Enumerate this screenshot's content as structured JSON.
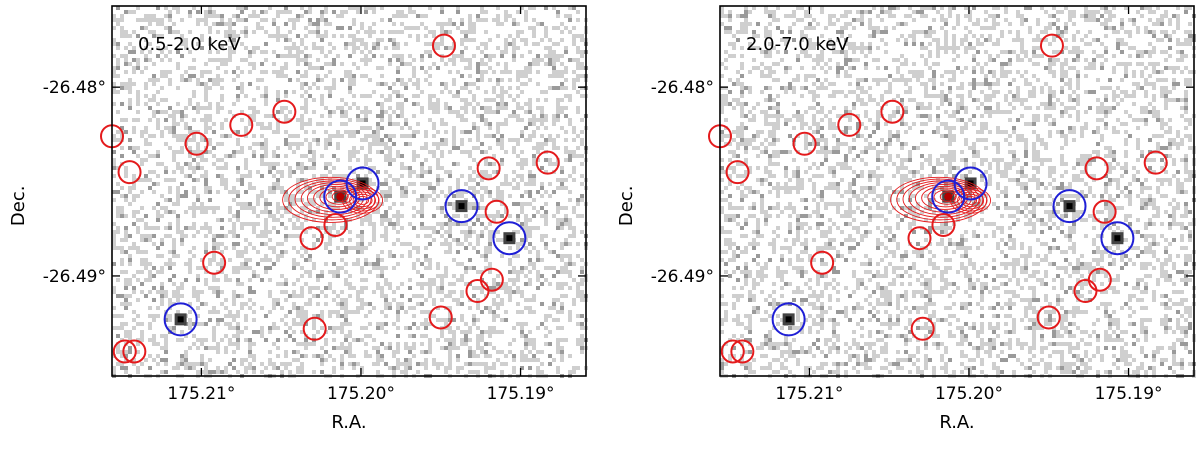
{
  "chart_data": [
    {
      "type": "scatter",
      "band_label": "0.5-2.0 keV",
      "xlabel": "R.A.",
      "ylabel": "Dec.",
      "x_ticks": [
        175.21,
        175.2,
        175.19
      ],
      "x_tick_labels": [
        "175.21°",
        "175.20°",
        "175.19°"
      ],
      "y_ticks": [
        -26.48,
        -26.49
      ],
      "y_tick_labels": [
        "-26.48°",
        "-26.49°"
      ],
      "xlim": [
        175.2156,
        175.1859
      ],
      "ylim": [
        -26.4953,
        -26.4757
      ],
      "red_sources": [
        [
          175.2156,
          -26.4826
        ],
        [
          175.2145,
          -26.4845
        ],
        [
          175.2103,
          -26.483
        ],
        [
          175.2092,
          -26.4893
        ],
        [
          175.2075,
          -26.482
        ],
        [
          175.2048,
          -26.4813
        ],
        [
          175.2031,
          -26.488
        ],
        [
          175.2016,
          -26.4873
        ],
        [
          175.2029,
          -26.4928
        ],
        [
          175.1948,
          -26.4778
        ],
        [
          175.192,
          -26.4843
        ],
        [
          175.1915,
          -26.4866
        ],
        [
          175.1883,
          -26.484
        ],
        [
          175.195,
          -26.4922
        ],
        [
          175.1927,
          -26.4908
        ],
        [
          175.1918,
          -26.4902
        ],
        [
          175.2148,
          -26.494
        ],
        [
          175.2142,
          -26.494
        ]
      ],
      "blue_sources": [
        [
          175.2013,
          -26.4858
        ],
        [
          175.1999,
          -26.4851
        ],
        [
          175.1937,
          -26.4863
        ],
        [
          175.1907,
          -26.488
        ],
        [
          175.2113,
          -26.4923
        ]
      ]
    },
    {
      "type": "scatter",
      "band_label": "2.0-7.0 keV",
      "xlabel": "R.A.",
      "ylabel": "Dec.",
      "x_ticks": [
        175.21,
        175.2,
        175.19
      ],
      "x_tick_labels": [
        "175.21°",
        "175.20°",
        "175.19°"
      ],
      "y_ticks": [
        -26.48,
        -26.49
      ],
      "y_tick_labels": [
        "-26.48°",
        "-26.49°"
      ],
      "xlim": [
        175.2156,
        175.1859
      ],
      "ylim": [
        -26.4953,
        -26.4757
      ],
      "red_sources": [
        [
          175.2156,
          -26.4826
        ],
        [
          175.2145,
          -26.4845
        ],
        [
          175.2103,
          -26.483
        ],
        [
          175.2092,
          -26.4893
        ],
        [
          175.2075,
          -26.482
        ],
        [
          175.2048,
          -26.4813
        ],
        [
          175.2031,
          -26.488
        ],
        [
          175.2016,
          -26.4873
        ],
        [
          175.2029,
          -26.4928
        ],
        [
          175.1948,
          -26.4778
        ],
        [
          175.192,
          -26.4843
        ],
        [
          175.1915,
          -26.4866
        ],
        [
          175.1883,
          -26.484
        ],
        [
          175.195,
          -26.4922
        ],
        [
          175.1927,
          -26.4908
        ],
        [
          175.1918,
          -26.4902
        ],
        [
          175.2148,
          -26.494
        ],
        [
          175.2142,
          -26.494
        ]
      ],
      "blue_sources": [
        [
          175.2013,
          -26.4858
        ],
        [
          175.1999,
          -26.4851
        ],
        [
          175.1937,
          -26.4863
        ],
        [
          175.1907,
          -26.488
        ],
        [
          175.2113,
          -26.4923
        ]
      ]
    }
  ],
  "colors": {
    "red_region": "#e41a1c",
    "blue_region": "#1f1fd6",
    "background": "#c8c8c8"
  }
}
